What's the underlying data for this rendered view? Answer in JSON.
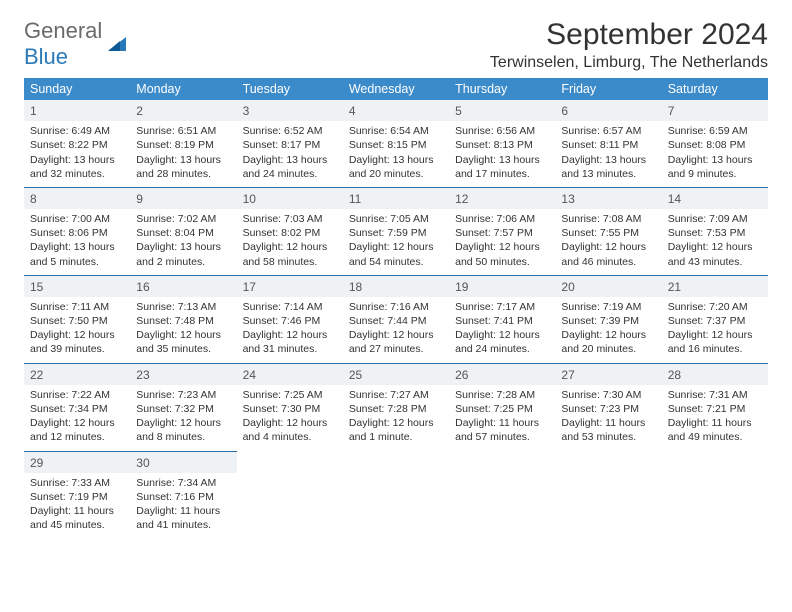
{
  "logo": {
    "text1": "General",
    "text2": "Blue"
  },
  "title": "September 2024",
  "location": "Terwinselen, Limburg, The Netherlands",
  "colors": {
    "header_bg": "#3b8aca",
    "header_text": "#ffffff",
    "daynum_bg": "#eef2f5",
    "border": "#2a6ea6",
    "text": "#333333",
    "logo_gray": "#6a6a6a",
    "logo_blue": "#2a7ab9"
  },
  "weekdays": [
    "Sunday",
    "Monday",
    "Tuesday",
    "Wednesday",
    "Thursday",
    "Friday",
    "Saturday"
  ],
  "weeks": [
    [
      {
        "n": "1",
        "sr": "Sunrise: 6:49 AM",
        "ss": "Sunset: 8:22 PM",
        "dl": "Daylight: 13 hours and 32 minutes."
      },
      {
        "n": "2",
        "sr": "Sunrise: 6:51 AM",
        "ss": "Sunset: 8:19 PM",
        "dl": "Daylight: 13 hours and 28 minutes."
      },
      {
        "n": "3",
        "sr": "Sunrise: 6:52 AM",
        "ss": "Sunset: 8:17 PM",
        "dl": "Daylight: 13 hours and 24 minutes."
      },
      {
        "n": "4",
        "sr": "Sunrise: 6:54 AM",
        "ss": "Sunset: 8:15 PM",
        "dl": "Daylight: 13 hours and 20 minutes."
      },
      {
        "n": "5",
        "sr": "Sunrise: 6:56 AM",
        "ss": "Sunset: 8:13 PM",
        "dl": "Daylight: 13 hours and 17 minutes."
      },
      {
        "n": "6",
        "sr": "Sunrise: 6:57 AM",
        "ss": "Sunset: 8:11 PM",
        "dl": "Daylight: 13 hours and 13 minutes."
      },
      {
        "n": "7",
        "sr": "Sunrise: 6:59 AM",
        "ss": "Sunset: 8:08 PM",
        "dl": "Daylight: 13 hours and 9 minutes."
      }
    ],
    [
      {
        "n": "8",
        "sr": "Sunrise: 7:00 AM",
        "ss": "Sunset: 8:06 PM",
        "dl": "Daylight: 13 hours and 5 minutes."
      },
      {
        "n": "9",
        "sr": "Sunrise: 7:02 AM",
        "ss": "Sunset: 8:04 PM",
        "dl": "Daylight: 13 hours and 2 minutes."
      },
      {
        "n": "10",
        "sr": "Sunrise: 7:03 AM",
        "ss": "Sunset: 8:02 PM",
        "dl": "Daylight: 12 hours and 58 minutes."
      },
      {
        "n": "11",
        "sr": "Sunrise: 7:05 AM",
        "ss": "Sunset: 7:59 PM",
        "dl": "Daylight: 12 hours and 54 minutes."
      },
      {
        "n": "12",
        "sr": "Sunrise: 7:06 AM",
        "ss": "Sunset: 7:57 PM",
        "dl": "Daylight: 12 hours and 50 minutes."
      },
      {
        "n": "13",
        "sr": "Sunrise: 7:08 AM",
        "ss": "Sunset: 7:55 PM",
        "dl": "Daylight: 12 hours and 46 minutes."
      },
      {
        "n": "14",
        "sr": "Sunrise: 7:09 AM",
        "ss": "Sunset: 7:53 PM",
        "dl": "Daylight: 12 hours and 43 minutes."
      }
    ],
    [
      {
        "n": "15",
        "sr": "Sunrise: 7:11 AM",
        "ss": "Sunset: 7:50 PM",
        "dl": "Daylight: 12 hours and 39 minutes."
      },
      {
        "n": "16",
        "sr": "Sunrise: 7:13 AM",
        "ss": "Sunset: 7:48 PM",
        "dl": "Daylight: 12 hours and 35 minutes."
      },
      {
        "n": "17",
        "sr": "Sunrise: 7:14 AM",
        "ss": "Sunset: 7:46 PM",
        "dl": "Daylight: 12 hours and 31 minutes."
      },
      {
        "n": "18",
        "sr": "Sunrise: 7:16 AM",
        "ss": "Sunset: 7:44 PM",
        "dl": "Daylight: 12 hours and 27 minutes."
      },
      {
        "n": "19",
        "sr": "Sunrise: 7:17 AM",
        "ss": "Sunset: 7:41 PM",
        "dl": "Daylight: 12 hours and 24 minutes."
      },
      {
        "n": "20",
        "sr": "Sunrise: 7:19 AM",
        "ss": "Sunset: 7:39 PM",
        "dl": "Daylight: 12 hours and 20 minutes."
      },
      {
        "n": "21",
        "sr": "Sunrise: 7:20 AM",
        "ss": "Sunset: 7:37 PM",
        "dl": "Daylight: 12 hours and 16 minutes."
      }
    ],
    [
      {
        "n": "22",
        "sr": "Sunrise: 7:22 AM",
        "ss": "Sunset: 7:34 PM",
        "dl": "Daylight: 12 hours and 12 minutes."
      },
      {
        "n": "23",
        "sr": "Sunrise: 7:23 AM",
        "ss": "Sunset: 7:32 PM",
        "dl": "Daylight: 12 hours and 8 minutes."
      },
      {
        "n": "24",
        "sr": "Sunrise: 7:25 AM",
        "ss": "Sunset: 7:30 PM",
        "dl": "Daylight: 12 hours and 4 minutes."
      },
      {
        "n": "25",
        "sr": "Sunrise: 7:27 AM",
        "ss": "Sunset: 7:28 PM",
        "dl": "Daylight: 12 hours and 1 minute."
      },
      {
        "n": "26",
        "sr": "Sunrise: 7:28 AM",
        "ss": "Sunset: 7:25 PM",
        "dl": "Daylight: 11 hours and 57 minutes."
      },
      {
        "n": "27",
        "sr": "Sunrise: 7:30 AM",
        "ss": "Sunset: 7:23 PM",
        "dl": "Daylight: 11 hours and 53 minutes."
      },
      {
        "n": "28",
        "sr": "Sunrise: 7:31 AM",
        "ss": "Sunset: 7:21 PM",
        "dl": "Daylight: 11 hours and 49 minutes."
      }
    ],
    [
      {
        "n": "29",
        "sr": "Sunrise: 7:33 AM",
        "ss": "Sunset: 7:19 PM",
        "dl": "Daylight: 11 hours and 45 minutes."
      },
      {
        "n": "30",
        "sr": "Sunrise: 7:34 AM",
        "ss": "Sunset: 7:16 PM",
        "dl": "Daylight: 11 hours and 41 minutes."
      },
      null,
      null,
      null,
      null,
      null
    ]
  ]
}
